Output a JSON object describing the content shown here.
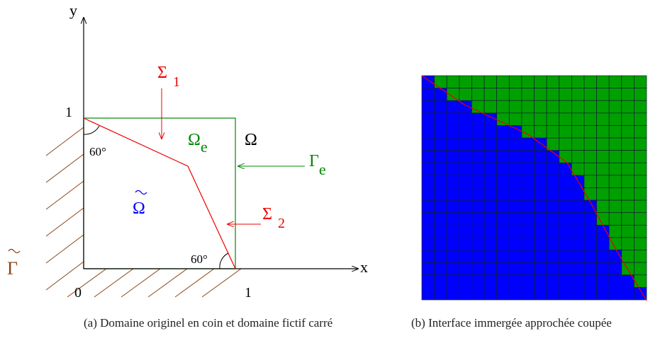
{
  "left": {
    "axis_y": "y",
    "axis_x": "x",
    "origin": "0",
    "x_one": "1",
    "y_one": "1",
    "angle_top": "60°",
    "angle_bottom": "60°",
    "sigma1": {
      "symbol": "Σ",
      "sub": "1"
    },
    "omega_e": {
      "symbol": "Ω",
      "sub": "e"
    },
    "omega": "Ω",
    "gamma_e": {
      "symbol": "Γ",
      "sub": "e"
    },
    "sigma2": {
      "symbol": "Σ",
      "sub": "2"
    },
    "omega_tilde": "Ω",
    "gamma_tilde": "Γ"
  },
  "captions": [
    "(a) Domaine originel en coin et domaine fictif carré",
    "(b) Interface immergée approchée coupée"
  ]
}
